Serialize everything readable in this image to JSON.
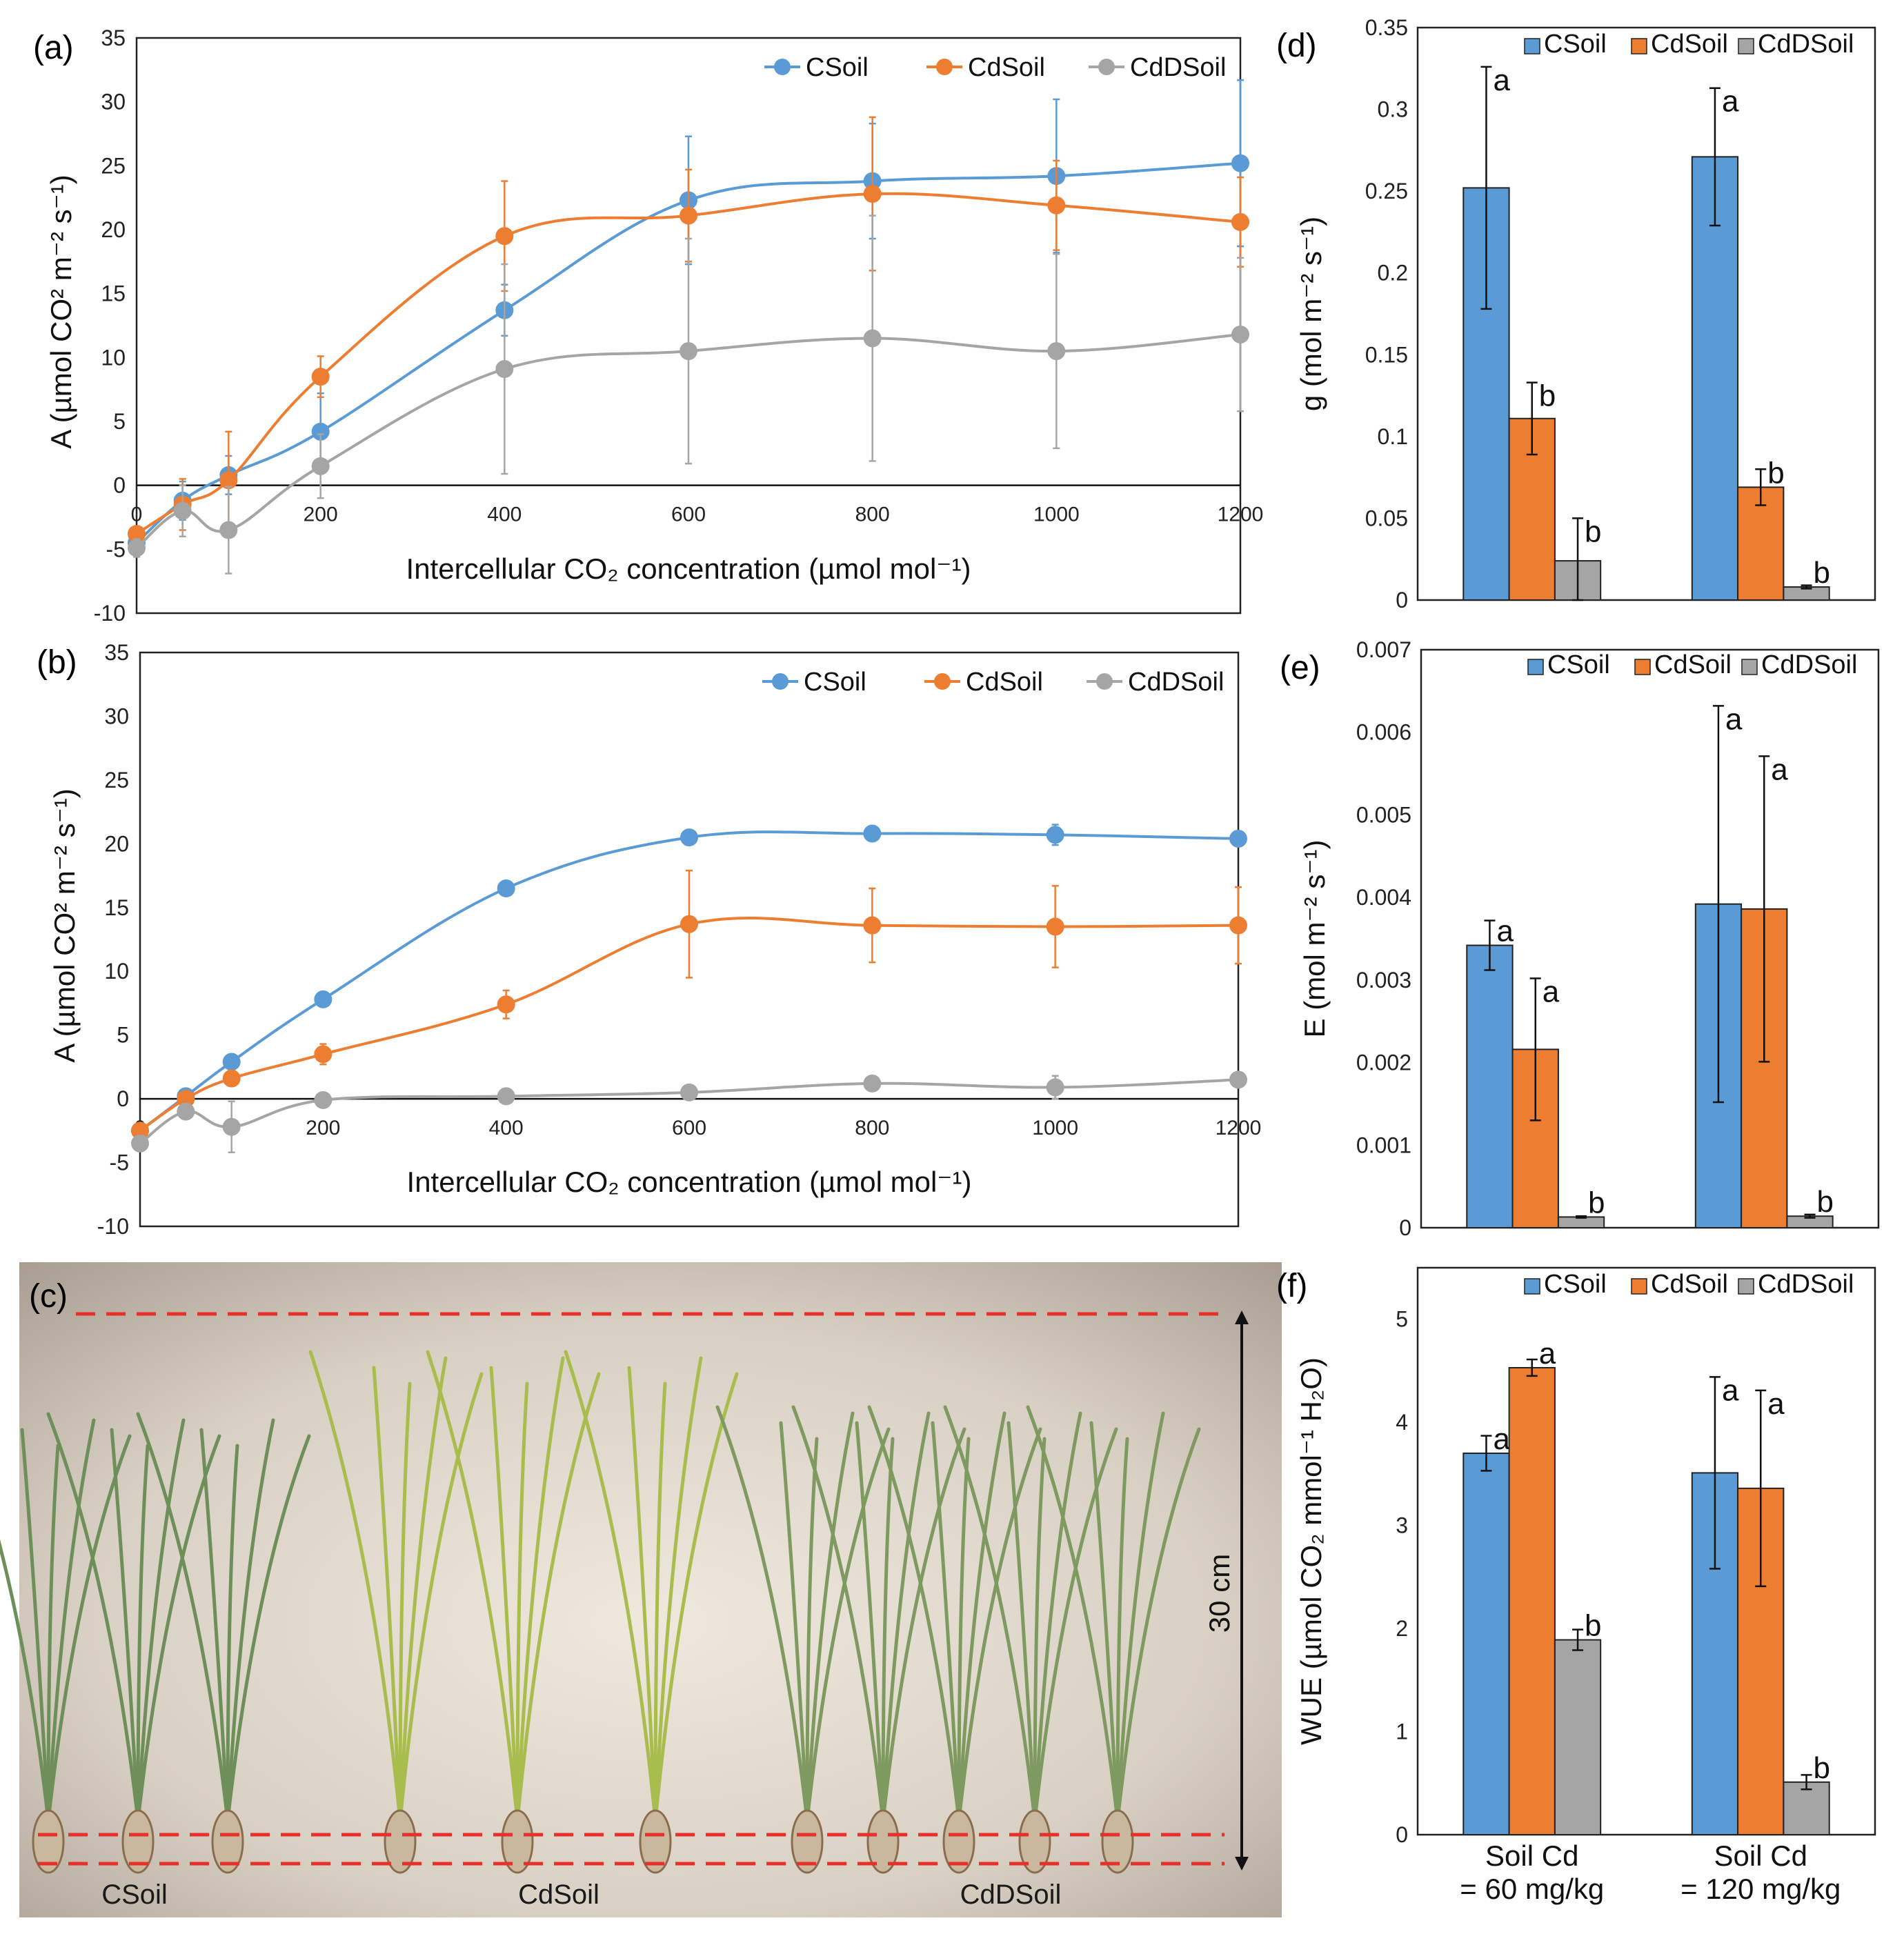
{
  "colors": {
    "csoil": "#5B9BD5",
    "cdsoil": "#ED7D31",
    "cddsoil": "#A5A5A5"
  },
  "chart_data": [
    {
      "panel": "(a)",
      "type": "line",
      "xlabel": "Intercellular CO₂ concentration (µmol mol⁻¹)",
      "ylabel": "A (µmol CO² m⁻² s⁻¹)",
      "xticks": [
        0,
        200,
        400,
        600,
        800,
        1000,
        1200
      ],
      "yticks": [
        -10,
        -5,
        0,
        5,
        10,
        15,
        20,
        25,
        30,
        35
      ],
      "xlim": [
        0,
        1200
      ],
      "ylim": [
        -10,
        35
      ],
      "x": [
        0,
        50,
        100,
        200,
        400,
        600,
        800,
        1000,
        1200
      ],
      "series": [
        {
          "name": "CSoil",
          "values": [
            -4.5,
            -1.2,
            0.8,
            4.2,
            13.7,
            22.3,
            23.8,
            24.2,
            25.2
          ],
          "errors": [
            0.5,
            1.5,
            1.5,
            3.0,
            2.0,
            5.0,
            4.5,
            6.0,
            6.5
          ]
        },
        {
          "name": "CdSoil",
          "values": [
            -3.8,
            -1.5,
            0.4,
            8.5,
            19.5,
            21.1,
            22.8,
            21.9,
            20.6
          ],
          "errors": [
            0.6,
            2.0,
            3.8,
            1.6,
            4.3,
            3.6,
            6.0,
            3.5,
            3.5
          ]
        },
        {
          "name": "CdDSoil",
          "values": [
            -4.9,
            -2.0,
            -3.5,
            1.5,
            9.1,
            10.5,
            11.5,
            10.5,
            11.8
          ],
          "errors": [
            0.7,
            2.0,
            3.4,
            2.5,
            8.2,
            8.8,
            9.6,
            7.6,
            6.0
          ]
        }
      ]
    },
    {
      "panel": "(b)",
      "type": "line",
      "xlabel": "Intercellular CO₂ concentration (µmol mol⁻¹)",
      "ylabel": "A (µmol CO² m⁻² s⁻¹)",
      "xticks": [
        0,
        200,
        400,
        600,
        800,
        1000,
        1200
      ],
      "yticks": [
        -10,
        -5,
        0,
        5,
        10,
        15,
        20,
        25,
        30,
        35
      ],
      "xlim": [
        0,
        1200
      ],
      "ylim": [
        -10,
        35
      ],
      "x": [
        0,
        50,
        100,
        200,
        400,
        600,
        800,
        1000,
        1200
      ],
      "series": [
        {
          "name": "CSoil",
          "values": [
            -2.5,
            0.2,
            2.9,
            7.8,
            16.5,
            20.5,
            20.8,
            20.7,
            20.4
          ],
          "errors": [
            0.3,
            0.3,
            0.3,
            0.4,
            0.4,
            0.5,
            0.5,
            0.8,
            0.5
          ]
        },
        {
          "name": "CdSoil",
          "values": [
            -2.5,
            0.0,
            1.6,
            3.5,
            7.4,
            13.7,
            13.6,
            13.5,
            13.6
          ],
          "errors": [
            0.4,
            0.4,
            0.6,
            0.8,
            1.1,
            4.2,
            2.9,
            3.2,
            3.0
          ]
        },
        {
          "name": "CdDSoil",
          "values": [
            -3.5,
            -1.0,
            -2.2,
            -0.1,
            0.2,
            0.5,
            1.2,
            0.9,
            1.5
          ],
          "errors": [
            0.5,
            0.5,
            2.0,
            0.3,
            0.4,
            0.4,
            0.4,
            0.9,
            0.5
          ]
        }
      ]
    },
    {
      "panel": "(d)",
      "type": "bar",
      "ylabel": "g (mol m⁻² s⁻¹)",
      "yticks": [
        "0",
        "0.05",
        "0.1",
        "0.15",
        "0.2",
        "0.25",
        "0.3",
        "0.35"
      ],
      "ylim": [
        0,
        0.35
      ],
      "categories": [
        "Soil Cd = 60 mg/kg",
        "Soil Cd = 120 mg/kg"
      ],
      "series": [
        {
          "name": "CSoil",
          "values": [
            0.252,
            0.271
          ],
          "errors": [
            0.074,
            0.042
          ],
          "letters": [
            "a",
            "a"
          ]
        },
        {
          "name": "CdSoil",
          "values": [
            0.111,
            0.069
          ],
          "errors": [
            0.022,
            0.011
          ],
          "letters": [
            "b",
            "b"
          ]
        },
        {
          "name": "CdDSoil",
          "values": [
            0.024,
            0.008
          ],
          "errors": [
            0.026,
            0.001
          ],
          "letters": [
            "b",
            "b"
          ]
        }
      ]
    },
    {
      "panel": "(e)",
      "type": "bar",
      "ylabel": "E (mol m⁻² s⁻¹)",
      "yticks": [
        "0",
        "0.001",
        "0.002",
        "0.003",
        "0.004",
        "0.005",
        "0.006",
        "0.007"
      ],
      "ylim": [
        0,
        0.007
      ],
      "categories": [
        "Soil Cd = 60 mg/kg",
        "Soil Cd = 120 mg/kg"
      ],
      "series": [
        {
          "name": "CSoil",
          "values": [
            0.00342,
            0.00392
          ],
          "errors": [
            0.0003,
            0.0024
          ],
          "letters": [
            "a",
            "a"
          ]
        },
        {
          "name": "CdSoil",
          "values": [
            0.00216,
            0.00386
          ],
          "errors": [
            0.00086,
            0.00185
          ],
          "letters": [
            "a",
            "a"
          ]
        },
        {
          "name": "CdDSoil",
          "values": [
            0.00013,
            0.00014
          ],
          "errors": [
            1e-05,
            2e-05
          ],
          "letters": [
            "b",
            "b"
          ]
        }
      ]
    },
    {
      "panel": "(f)",
      "type": "bar",
      "ylabel": "WUE (µmol CO₂ mmol⁻¹ H₂O)",
      "yticks": [
        "0",
        "1",
        "2",
        "3",
        "4",
        "5"
      ],
      "ylim": [
        0,
        5.5
      ],
      "categories": [
        "Soil Cd = 60 mg/kg",
        "Soil Cd = 120 mg/kg"
      ],
      "series": [
        {
          "name": "CSoil",
          "values": [
            3.7,
            3.51
          ],
          "errors": [
            0.17,
            0.93
          ],
          "letters": [
            "a",
            "a"
          ]
        },
        {
          "name": "CdSoil",
          "values": [
            4.53,
            3.36
          ],
          "errors": [
            0.08,
            0.95
          ],
          "letters": [
            "a",
            "a"
          ]
        },
        {
          "name": "CdDSoil",
          "values": [
            1.89,
            0.51
          ],
          "errors": [
            0.1,
            0.07
          ],
          "letters": [
            "b",
            "b"
          ]
        }
      ]
    }
  ],
  "legend": [
    "CSoil",
    "CdSoil",
    "CdDSoil"
  ],
  "categories_lines": [
    [
      "Soil Cd",
      "= 60 mg/kg"
    ],
    [
      "Soil Cd",
      "= 120 mg/kg"
    ]
  ],
  "photo": {
    "panel": "(c)",
    "scale_label": "30 cm",
    "groups": [
      "CSoil",
      "CdSoil",
      "CdDSoil"
    ]
  }
}
